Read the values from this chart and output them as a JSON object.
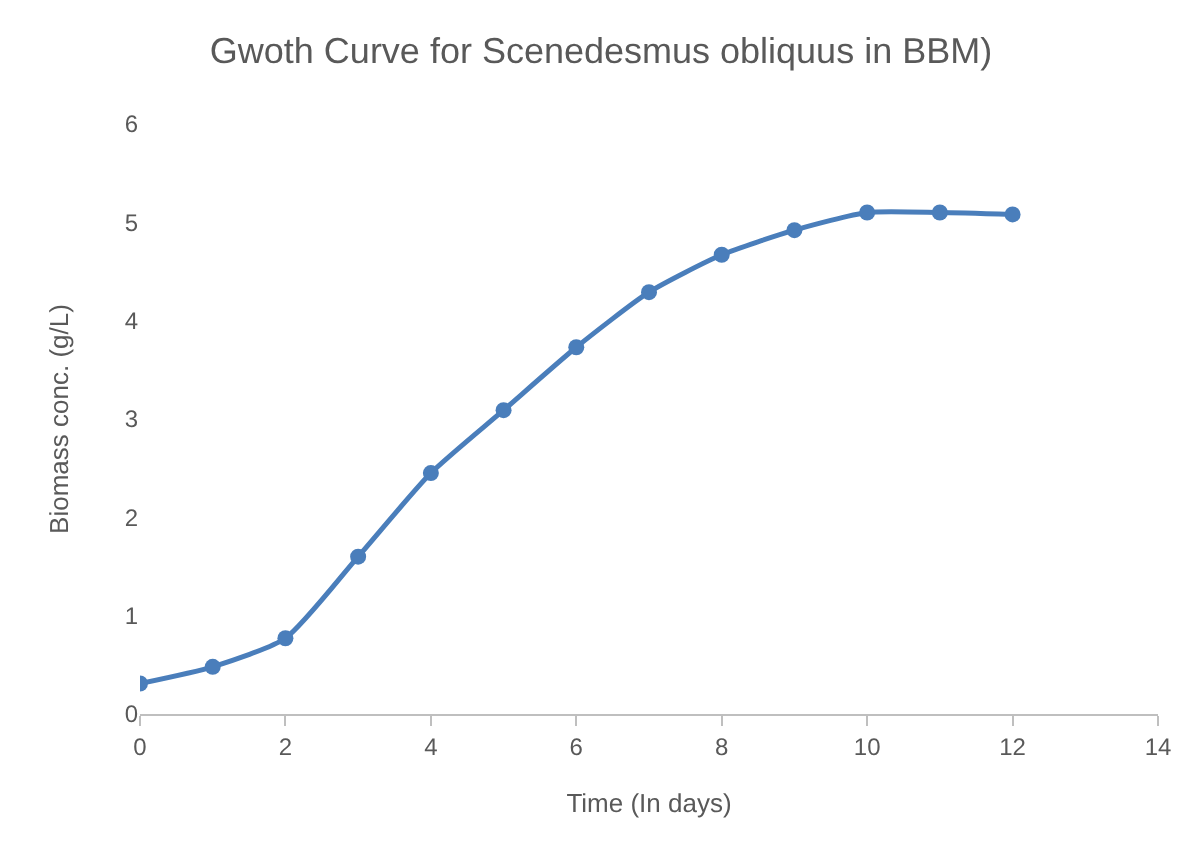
{
  "chart_data": {
    "type": "line",
    "title": "Gwoth Curve for Scenedesmus obliquus in BBM)",
    "xlabel": "Time (In days)",
    "ylabel": "Biomass conc. (g/L)",
    "x": [
      0,
      1,
      2,
      3,
      4,
      5,
      6,
      7,
      8,
      9,
      10,
      11,
      12
    ],
    "series": [
      {
        "color": "#4a7ebb",
        "values": [
          0.31,
          0.48,
          0.77,
          1.6,
          2.45,
          3.09,
          3.73,
          4.29,
          4.67,
          4.92,
          5.1,
          5.1,
          5.08
        ]
      }
    ],
    "xlim": [
      0,
      14
    ],
    "xticks": [
      0,
      2,
      4,
      6,
      8,
      10,
      12,
      14
    ],
    "ylim": [
      0,
      6
    ],
    "yticks": [
      0,
      1,
      2,
      3,
      4,
      5,
      6
    ],
    "grid": false,
    "marker": "circle",
    "line_style": "solid"
  }
}
